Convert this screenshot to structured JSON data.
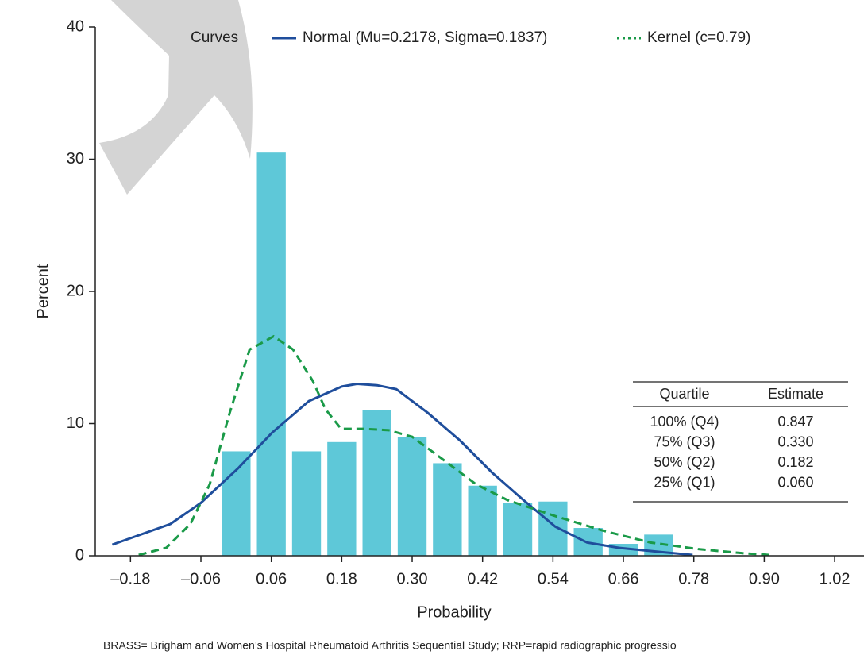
{
  "chart_data": {
    "type": "histogram",
    "xlabel": "Probability",
    "ylabel": "Percent",
    "bins": [
      -0.03,
      0.03,
      0.09,
      0.15,
      0.21,
      0.27,
      0.33,
      0.39,
      0.45,
      0.51,
      0.57,
      0.63,
      0.69,
      0.75
    ],
    "values": [
      7.9,
      30.5,
      7.9,
      8.6,
      11.0,
      9.0,
      7.0,
      5.3,
      4.0,
      4.1,
      2.1,
      0.9,
      1.6
    ],
    "color": "#5ec8d8",
    "xlim": [
      -0.24,
      1.07
    ],
    "ylim": [
      0,
      40
    ],
    "xticks": [
      {
        "value": -0.18,
        "label": "–0.18"
      },
      {
        "value": -0.06,
        "label": "–0.06"
      },
      0.06,
      0.18,
      {
        "value": 0.3,
        "label": "0.30"
      },
      0.42,
      0.54,
      0.66,
      0.78,
      {
        "value": 0.9,
        "label": "0.90"
      },
      1.02
    ],
    "yticks": [
      0,
      10,
      20,
      30,
      40
    ],
    "legend_title": "Curves",
    "curves": [
      {
        "name": "Normal (Mu=0.2178, Sigma=0.1837)",
        "color": "#1f4e9c",
        "style": "solid",
        "x": [
          -0.211,
          -0.112,
          -0.06,
          0.003,
          0.061,
          0.124,
          0.18,
          0.206,
          0.24,
          0.273,
          0.327,
          0.382,
          0.436,
          0.49,
          0.544,
          0.598,
          0.652,
          0.72,
          0.778
        ],
        "values": [
          0.84,
          2.4,
          4.0,
          6.6,
          9.3,
          11.7,
          12.8,
          13.0,
          12.9,
          12.6,
          10.8,
          8.7,
          6.3,
          4.2,
          2.2,
          1.0,
          0.6,
          0.3,
          0.06
        ]
      },
      {
        "name": "Kernel (c=0.79)",
        "color": "#1a9a48",
        "style": "dashed",
        "x": [
          -0.166,
          -0.119,
          -0.078,
          -0.045,
          -0.011,
          0.023,
          0.064,
          0.097,
          0.131,
          0.152,
          0.179,
          0.219,
          0.26,
          0.3,
          0.355,
          0.409,
          0.463,
          0.544,
          0.625,
          0.706,
          0.788,
          0.862,
          0.909
        ],
        "values": [
          0.06,
          0.6,
          2.4,
          5.4,
          10.8,
          15.6,
          16.6,
          15.6,
          13.2,
          11.1,
          9.6,
          9.6,
          9.5,
          9.0,
          7.2,
          5.4,
          4.2,
          3.0,
          1.9,
          1.0,
          0.5,
          0.2,
          0.06
        ]
      }
    ],
    "quartile_table": {
      "columns": [
        "Quartile",
        "Estimate"
      ],
      "rows": [
        [
          "100% (Q4)",
          "0.847"
        ],
        [
          "75% (Q3)",
          "0.330"
        ],
        [
          "50% (Q2)",
          "0.182"
        ],
        [
          "25% (Q1)",
          "0.060"
        ]
      ]
    },
    "footnote": "BRASS= Brigham and Women’s Hospital Rheumatoid Arthritis Sequential Study; RRP=rapid radiographic progressio"
  }
}
